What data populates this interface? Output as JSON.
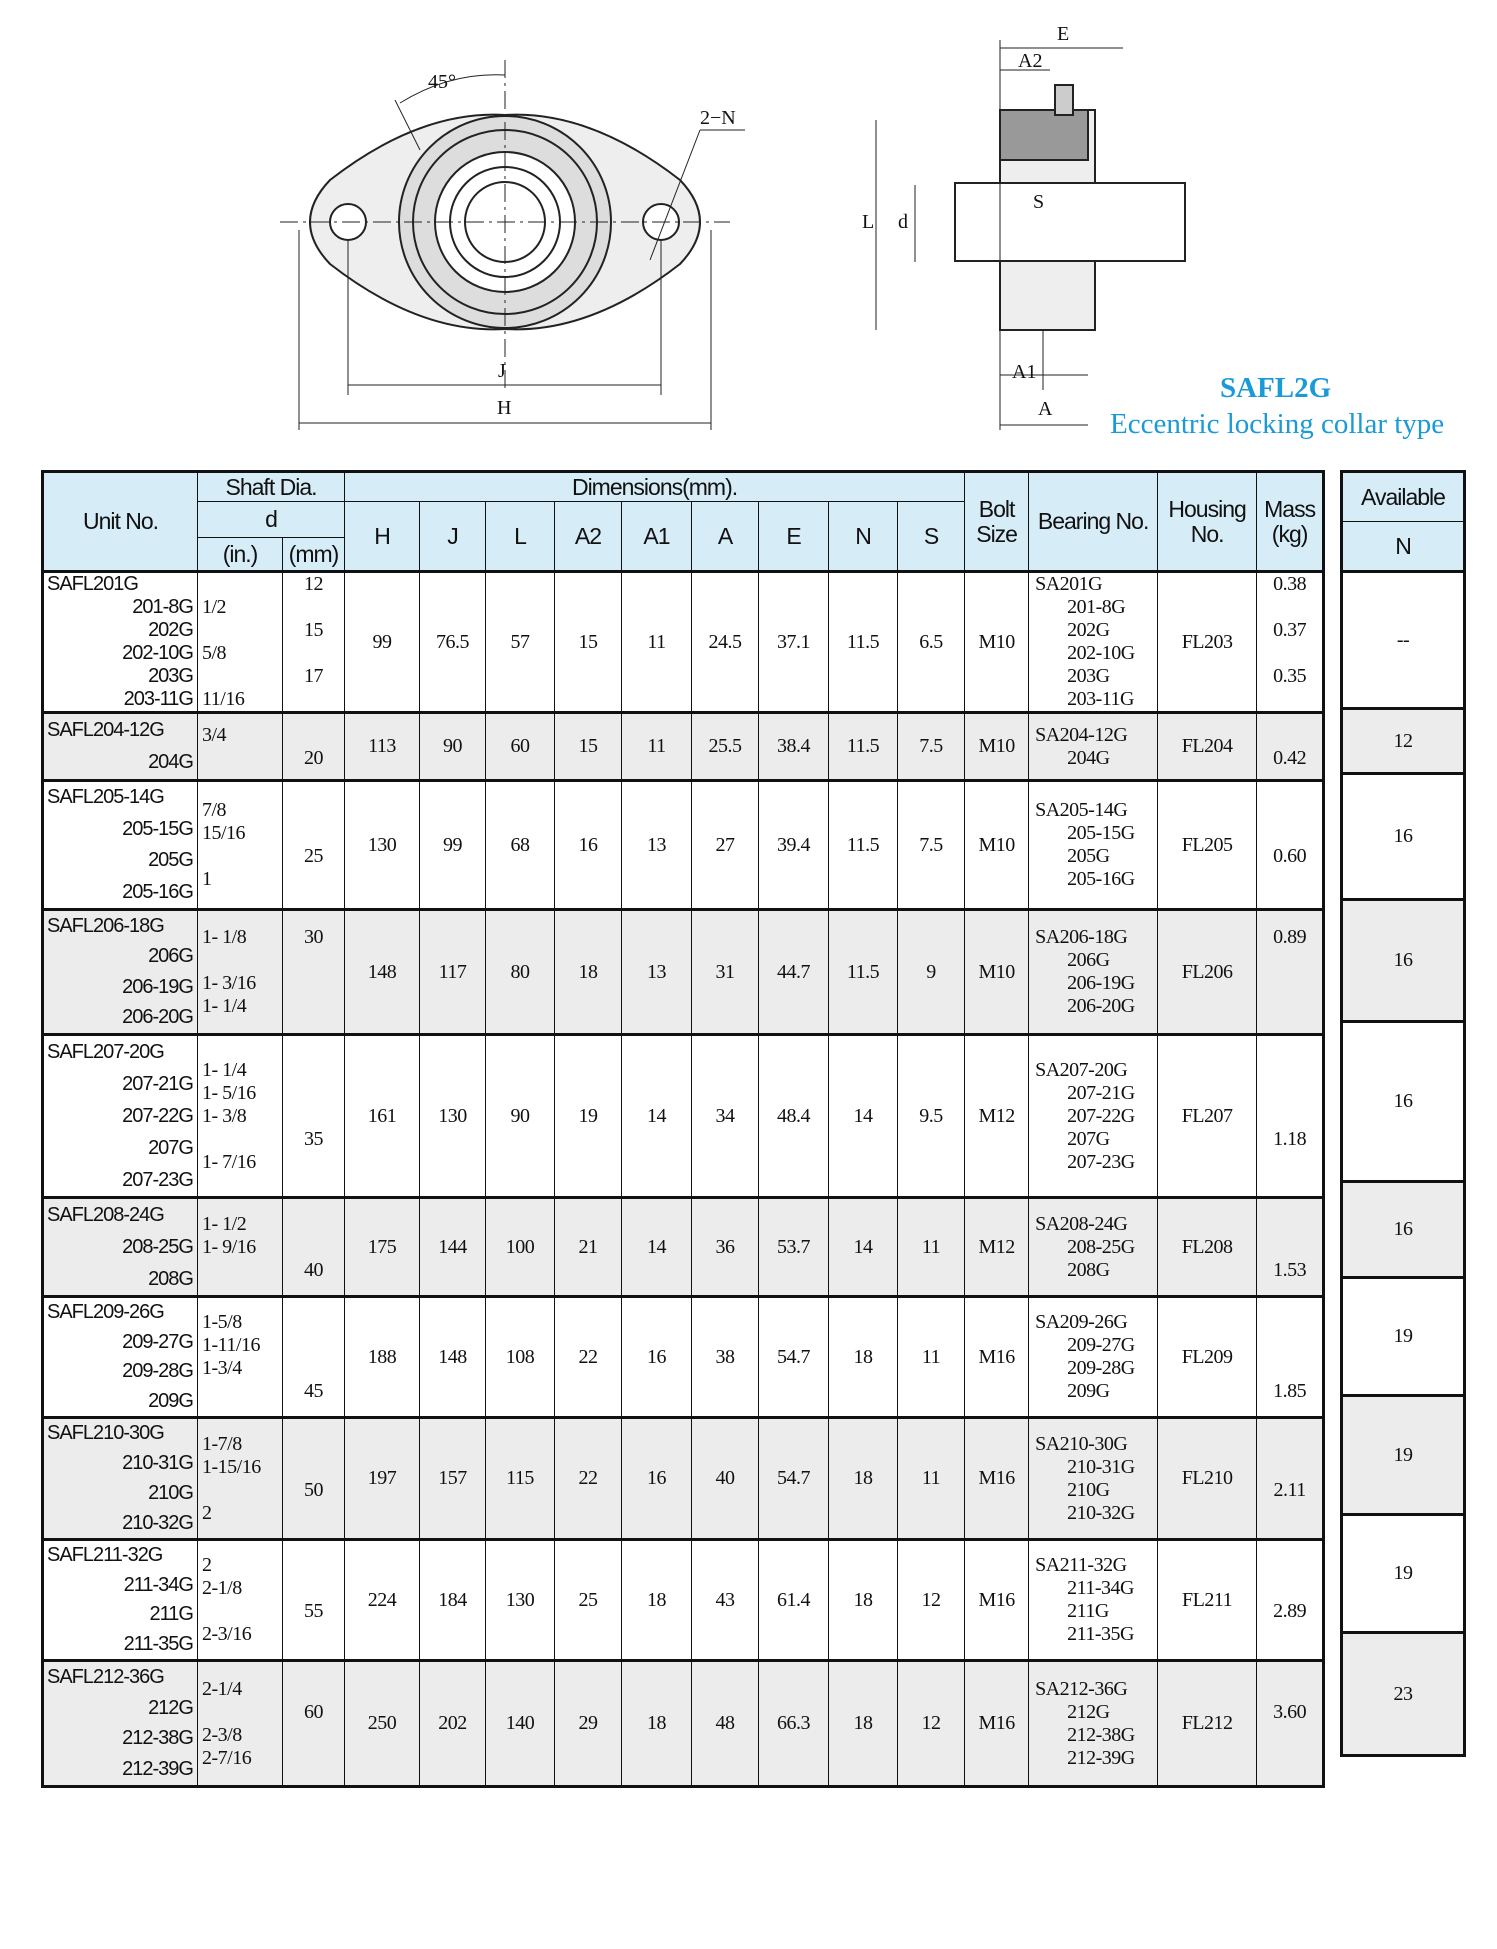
{
  "heading": {
    "model": "SAFL2G",
    "subtitle": "Eccentric locking collar type",
    "accent_color": "#1a9ad6"
  },
  "drawing_labels": {
    "angle": "45°",
    "holes": "2−N",
    "J": "J",
    "H": "H",
    "E": "E",
    "A2": "A2",
    "L": "L",
    "d": "d",
    "S": "S",
    "A1": "A1",
    "A": "A"
  },
  "header": {
    "unit_no": "Unit No.",
    "shaft_dia": "Shaft Dia.",
    "d": "d",
    "inch": "(in.)",
    "mm": "(mm)",
    "dimensions": "Dimensions(mm).",
    "dims": [
      "H",
      "J",
      "L",
      "A2",
      "A1",
      "A",
      "E",
      "N",
      "S"
    ],
    "bolt": "Bolt Size",
    "bearing": "Bearing No.",
    "housing": "Housing No.",
    "mass": "Mass (kg)",
    "available": "Available",
    "available_sub": "N"
  },
  "rows": [
    {
      "units": [
        "SAFL201G",
        "201-8G",
        "202G",
        "202-10G",
        "203G",
        "203-11G"
      ],
      "inch": [
        "",
        "1/2",
        "",
        "5/8",
        "",
        "11/16"
      ],
      "mm": [
        "12",
        "",
        "15",
        "",
        "17",
        ""
      ],
      "dims": [
        "99",
        "76.5",
        "57",
        "15",
        "11",
        "24.5",
        "37.1",
        "11.5",
        "6.5"
      ],
      "bolt": "M10",
      "bearing": [
        "SA201G",
        "201-8G",
        "202G",
        "202-10G",
        "203G",
        "203-11G"
      ],
      "housing": "FL203",
      "mass": [
        "0.38",
        "",
        "0.37",
        "",
        "0.35",
        ""
      ],
      "available": "--"
    },
    {
      "units": [
        "SAFL204-12G",
        "204G"
      ],
      "inch": [
        "3/4",
        ""
      ],
      "mm": [
        "",
        "20"
      ],
      "dims": [
        "113",
        "90",
        "60",
        "15",
        "11",
        "25.5",
        "38.4",
        "11.5",
        "7.5"
      ],
      "bolt": "M10",
      "bearing": [
        "SA204-12G",
        "204G"
      ],
      "housing": "FL204",
      "mass": [
        "",
        "0.42"
      ],
      "available": "12"
    },
    {
      "units": [
        "SAFL205-14G",
        "205-15G",
        "205G",
        "205-16G"
      ],
      "inch": [
        "7/8",
        "15/16",
        "",
        "1"
      ],
      "mm": [
        "",
        "",
        "25",
        ""
      ],
      "dims": [
        "130",
        "99",
        "68",
        "16",
        "13",
        "27",
        "39.4",
        "11.5",
        "7.5"
      ],
      "bolt": "M10",
      "bearing": [
        "SA205-14G",
        "205-15G",
        "205G",
        "205-16G"
      ],
      "housing": "FL205",
      "mass": [
        "",
        "",
        "0.60",
        ""
      ],
      "available": "16"
    },
    {
      "units": [
        "SAFL206-18G",
        "206G",
        "206-19G",
        "206-20G"
      ],
      "inch": [
        "1- 1/8",
        "",
        "1- 3/16",
        "1- 1/4"
      ],
      "mm": [
        "30",
        "",
        "",
        ""
      ],
      "dims": [
        "148",
        "117",
        "80",
        "18",
        "13",
        "31",
        "44.7",
        "11.5",
        "9"
      ],
      "bolt": "M10",
      "bearing": [
        "SA206-18G",
        "206G",
        "206-19G",
        "206-20G"
      ],
      "housing": "FL206",
      "mass": [
        "0.89",
        "",
        "",
        ""
      ],
      "available": "16"
    },
    {
      "units": [
        "SAFL207-20G",
        "207-21G",
        "207-22G",
        "207G",
        "207-23G"
      ],
      "inch": [
        "1- 1/4",
        "1- 5/16",
        "1- 3/8",
        "",
        "1- 7/16"
      ],
      "mm": [
        "",
        "",
        "",
        "35",
        ""
      ],
      "dims": [
        "161",
        "130",
        "90",
        "19",
        "14",
        "34",
        "48.4",
        "14",
        "9.5"
      ],
      "bolt": "M12",
      "bearing": [
        "SA207-20G",
        "207-21G",
        "207-22G",
        "207G",
        "207-23G"
      ],
      "housing": "FL207",
      "mass": [
        "",
        "",
        "",
        "1.18",
        ""
      ],
      "available": "16"
    },
    {
      "units": [
        "SAFL208-24G",
        "208-25G",
        "208G"
      ],
      "inch": [
        "1- 1/2",
        "1- 9/16",
        ""
      ],
      "mm": [
        "",
        "",
        "40"
      ],
      "dims": [
        "175",
        "144",
        "100",
        "21",
        "14",
        "36",
        "53.7",
        "14",
        "11"
      ],
      "bolt": "M12",
      "bearing": [
        "SA208-24G",
        "208-25G",
        "208G"
      ],
      "housing": "FL208",
      "mass": [
        "",
        "",
        "1.53"
      ],
      "available": "16"
    },
    {
      "units": [
        "SAFL209-26G",
        "209-27G",
        "209-28G",
        "209G"
      ],
      "inch": [
        "1-5/8",
        "1-11/16",
        "1-3/4",
        ""
      ],
      "mm": [
        "",
        "",
        "",
        "45"
      ],
      "dims": [
        "188",
        "148",
        "108",
        "22",
        "16",
        "38",
        "54.7",
        "18",
        "11"
      ],
      "bolt": "M16",
      "bearing": [
        "SA209-26G",
        "209-27G",
        "209-28G",
        "209G"
      ],
      "housing": "FL209",
      "mass": [
        "",
        "",
        "",
        "1.85"
      ],
      "available": "19"
    },
    {
      "units": [
        "SAFL210-30G",
        "210-31G",
        "210G",
        "210-32G"
      ],
      "inch": [
        "1-7/8",
        "1-15/16",
        "",
        "2"
      ],
      "mm": [
        "",
        "",
        "50",
        ""
      ],
      "dims": [
        "197",
        "157",
        "115",
        "22",
        "16",
        "40",
        "54.7",
        "18",
        "11"
      ],
      "bolt": "M16",
      "bearing": [
        "SA210-30G",
        "210-31G",
        "210G",
        "210-32G"
      ],
      "housing": "FL210",
      "mass": [
        "",
        "",
        "2.11",
        ""
      ],
      "available": "19"
    },
    {
      "units": [
        "SAFL211-32G",
        "211-34G",
        "211G",
        "211-35G"
      ],
      "inch": [
        "2",
        "2-1/8",
        "",
        "2-3/16"
      ],
      "mm": [
        "",
        "",
        "55",
        ""
      ],
      "dims": [
        "224",
        "184",
        "130",
        "25",
        "18",
        "43",
        "61.4",
        "18",
        "12"
      ],
      "bolt": "M16",
      "bearing": [
        "SA211-32G",
        "211-34G",
        "211G",
        "211-35G"
      ],
      "housing": "FL211",
      "mass": [
        "",
        "",
        "2.89",
        ""
      ],
      "available": "19"
    },
    {
      "units": [
        "SAFL212-36G",
        "212G",
        "212-38G",
        "212-39G"
      ],
      "inch": [
        "2-1/4",
        "",
        "2-3/8",
        "2-7/16"
      ],
      "mm": [
        "",
        "60",
        "",
        ""
      ],
      "dims": [
        "250",
        "202",
        "140",
        "29",
        "18",
        "48",
        "66.3",
        "18",
        "12"
      ],
      "bolt": "M16",
      "bearing": [
        "SA212-36G",
        "212G",
        "212-38G",
        "212-39G"
      ],
      "housing": "FL212",
      "mass": [
        "",
        "3.60",
        "",
        ""
      ],
      "available": "23"
    }
  ]
}
